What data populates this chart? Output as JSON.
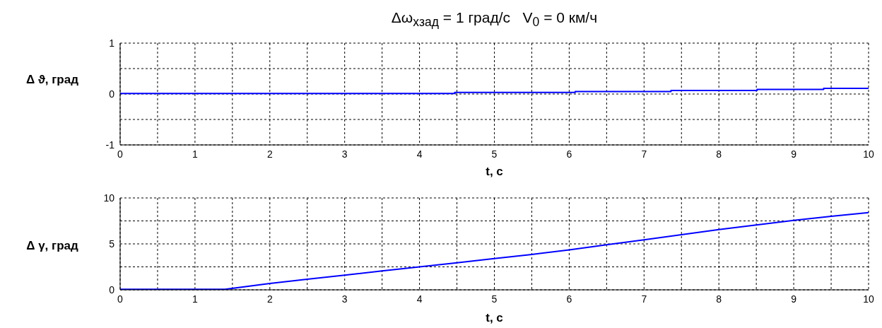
{
  "chart_data": [
    {
      "type": "step",
      "title": "Δω$_{xзад}$ = 1 град/с   V$_{0}$ = 0 км/ч",
      "xlabel": "t, с",
      "ylabel": "Δ ϑ, град",
      "color": "#0000ff",
      "x": [
        0,
        4.47,
        6.08,
        7.36,
        8.51,
        9.4,
        10
      ],
      "values": [
        0.01,
        0.03,
        0.05,
        0.07,
        0.09,
        0.11,
        0.11
      ],
      "xlim": [
        0,
        10
      ],
      "xticks": [
        0,
        {
          "value": 0.5,
          "label": null
        },
        1,
        {
          "value": 1.5,
          "label": null
        },
        2,
        {
          "value": 2.5,
          "label": null
        },
        3,
        {
          "value": 3.5,
          "label": null
        },
        4,
        {
          "value": 4.5,
          "label": null
        },
        5,
        {
          "value": 5.5,
          "label": null
        },
        6,
        {
          "value": 6.5,
          "label": null
        },
        7,
        {
          "value": 7.5,
          "label": null
        },
        8,
        {
          "value": 8.5,
          "label": null
        },
        9,
        {
          "value": 9.5,
          "label": null
        },
        10
      ],
      "ylim": [
        -1,
        1
      ],
      "yticks": [
        -1,
        {
          "value": -0.5,
          "label": null
        },
        0,
        {
          "value": 0.5,
          "label": null
        },
        1
      ],
      "grid": true
    },
    {
      "type": "line",
      "xlabel": "t, с",
      "ylabel": "Δ γ, град",
      "color": "#0000ff",
      "x": [
        0,
        1,
        1.4,
        2,
        2.5,
        3,
        3.5,
        4,
        4.5,
        5,
        5.5,
        6,
        6.5,
        7,
        7.5,
        8,
        8.5,
        9,
        9.5,
        10
      ],
      "values": [
        0.05,
        0.05,
        0.05,
        0.7,
        1.15,
        1.6,
        2.05,
        2.5,
        2.95,
        3.4,
        3.85,
        4.35,
        4.9,
        5.45,
        6.0,
        6.55,
        7.05,
        7.55,
        8.0,
        8.4
      ],
      "xlim": [
        0,
        10
      ],
      "xticks": [
        0,
        {
          "value": 0.5,
          "label": null
        },
        1,
        {
          "value": 1.5,
          "label": null
        },
        2,
        {
          "value": 2.5,
          "label": null
        },
        3,
        {
          "value": 3.5,
          "label": null
        },
        4,
        {
          "value": 4.5,
          "label": null
        },
        5,
        {
          "value": 5.5,
          "label": null
        },
        6,
        {
          "value": 6.5,
          "label": null
        },
        7,
        {
          "value": 7.5,
          "label": null
        },
        8,
        {
          "value": 8.5,
          "label": null
        },
        9,
        {
          "value": 9.5,
          "label": null
        },
        10
      ],
      "ylim": [
        0,
        10
      ],
      "yticks": [
        0,
        {
          "value": 2.5,
          "label": null
        },
        5,
        {
          "value": 7.5,
          "label": null
        },
        10
      ],
      "grid": true
    }
  ]
}
